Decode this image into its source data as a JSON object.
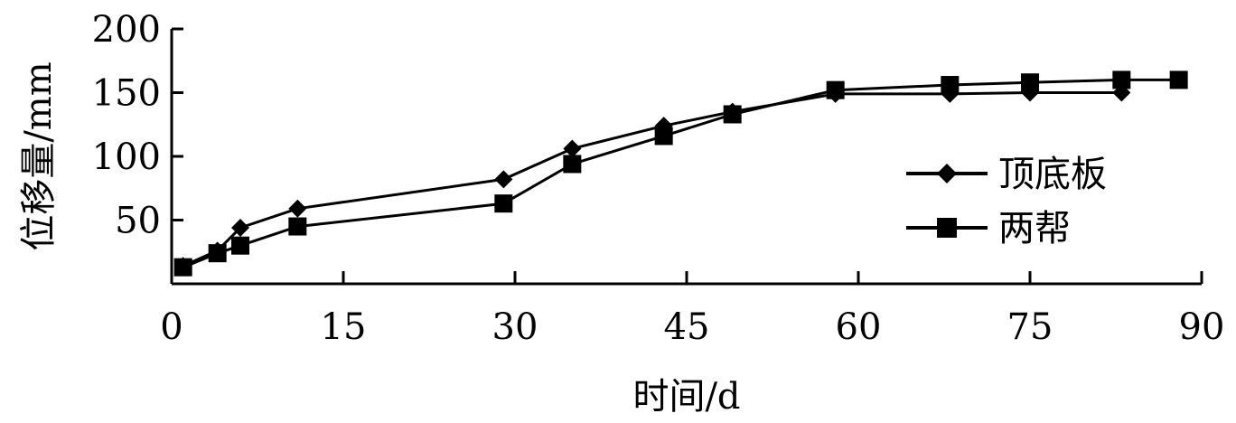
{
  "chart_data": {
    "type": "line",
    "xlabel": "时间/d",
    "ylabel": "位移量/mm",
    "xlim": [
      0,
      90
    ],
    "ylim": [
      0,
      200
    ],
    "xticks": [
      0,
      15,
      30,
      45,
      60,
      75,
      90
    ],
    "yticks": [
      50,
      100,
      150,
      200
    ],
    "xtick_labels": [
      "0",
      "15",
      "30",
      "45",
      "60",
      "75",
      "90"
    ],
    "ytick_labels": [
      "50",
      "100",
      "150",
      "200"
    ],
    "grid": false,
    "legend_position": "right",
    "series": [
      {
        "name": "顶底板",
        "marker": "diamond",
        "color": "#000000",
        "x": [
          1,
          4,
          6,
          11,
          29,
          35,
          43,
          49,
          58,
          68,
          75,
          83
        ],
        "y": [
          14,
          26,
          44,
          59,
          82,
          106,
          124,
          135,
          149,
          149,
          150,
          150
        ]
      },
      {
        "name": "两帮",
        "marker": "square",
        "color": "#000000",
        "x": [
          1,
          4,
          6,
          11,
          29,
          35,
          43,
          49,
          58,
          68,
          75,
          83,
          88
        ],
        "y": [
          13,
          24,
          30,
          45,
          63,
          94,
          116,
          133,
          152,
          156,
          158,
          160,
          160
        ]
      }
    ]
  }
}
